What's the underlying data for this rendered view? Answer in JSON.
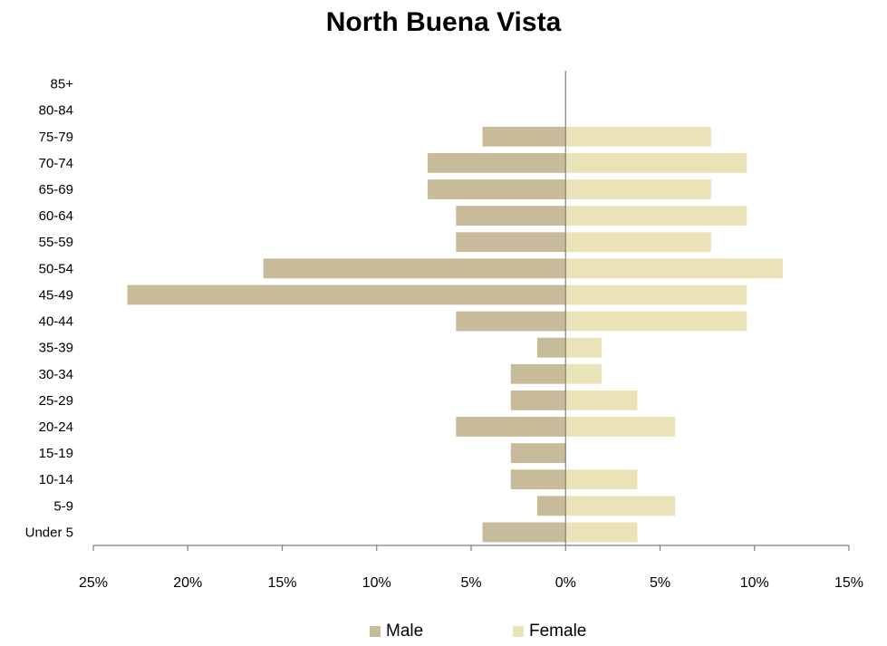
{
  "chart_data": {
    "type": "bar",
    "orientation": "horizontal",
    "title": "North Buena Vista",
    "categories": [
      "Under 5",
      "5-9",
      "10-14",
      "15-19",
      "20-24",
      "25-29",
      "30-34",
      "35-39",
      "40-44",
      "45-49",
      "50-54",
      "55-59",
      "60-64",
      "65-69",
      "70-74",
      "75-79",
      "80-84",
      "85+"
    ],
    "series": [
      {
        "name": "Male",
        "color": "#c8bb99",
        "values": [
          -4.4,
          -1.5,
          -2.9,
          -2.9,
          -5.8,
          -2.9,
          -2.9,
          -1.5,
          -5.8,
          -23.2,
          -16.0,
          -5.8,
          -5.8,
          -7.3,
          -7.3,
          -4.4,
          0,
          0
        ]
      },
      {
        "name": "Female",
        "color": "#ebe3b8",
        "values": [
          3.8,
          5.8,
          3.8,
          0,
          5.8,
          3.8,
          1.9,
          1.9,
          9.6,
          9.6,
          11.5,
          7.7,
          9.6,
          7.7,
          9.6,
          7.7,
          0,
          0
        ]
      }
    ],
    "xlim": [
      -25,
      15
    ],
    "xticks": [
      -25,
      -20,
      -15,
      -10,
      -5,
      0,
      5,
      10,
      15
    ],
    "xtick_labels": [
      "25%",
      "20%",
      "15%",
      "10%",
      "5%",
      "0%",
      "5%",
      "10%",
      "15%"
    ],
    "xlabel": "",
    "ylabel": "",
    "grid": false,
    "legend_position": "bottom"
  }
}
